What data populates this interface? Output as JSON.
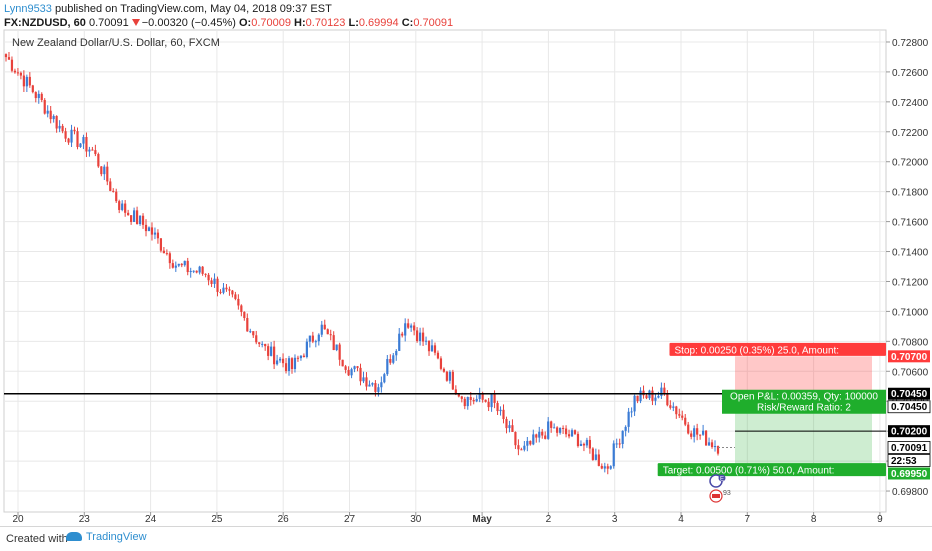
{
  "header": {
    "user": "Lynn9533",
    "published": " published on TradingView.com, May 04, 2018 09:37 EST",
    "symbol": "FX:NZDUSD, 60",
    "last": "0.70091",
    "change": "−0.00320 (−0.45%)",
    "o_label": "O:",
    "o": "0.70009",
    "h_label": "H:",
    "h": "0.70123",
    "l_label": "L:",
    "l": "0.69994",
    "c_label": "C:",
    "c": "0.70091"
  },
  "footer": {
    "created_with": "Created with",
    "brand": "TradingView"
  },
  "colors": {
    "up": "#3a7bd5",
    "down": "#e8413b",
    "stop": "#ff3b3b",
    "target": "#1fae2c",
    "grid": "#e8e8e8",
    "axis_text": "#333333"
  },
  "chart_data": {
    "type": "candlestick",
    "title": "New Zealand Dollar/U.S. Dollar, 60, FXCM",
    "ylim": [
      0.6966,
      0.7288
    ],
    "y_ticks": [
      "0.72800",
      "0.72600",
      "0.72400",
      "0.72200",
      "0.72000",
      "0.71800",
      "0.71600",
      "0.71400",
      "0.71200",
      "0.71000",
      "0.70800",
      "0.70600",
      "0.70400",
      "0.70200",
      "0.70000",
      "0.69800"
    ],
    "x_ticks": [
      "20",
      "23",
      "24",
      "25",
      "26",
      "27",
      "30",
      "May",
      "2",
      "3",
      "4",
      "7",
      "8",
      "9"
    ],
    "path": [
      [
        0.727,
        0.7246
      ],
      [
        0.7246,
        0.722
      ],
      [
        0.722,
        0.7208
      ],
      [
        0.7208,
        0.717
      ],
      [
        0.717,
        0.7155
      ],
      [
        0.7155,
        0.713
      ],
      [
        0.713,
        0.7125
      ],
      [
        0.7125,
        0.7105
      ],
      [
        0.7105,
        0.7075
      ],
      [
        0.7075,
        0.7062
      ],
      [
        0.7062,
        0.709
      ],
      [
        0.709,
        0.7062
      ],
      [
        0.7062,
        0.705
      ],
      [
        0.705,
        0.7095
      ],
      [
        0.7095,
        0.707
      ],
      [
        0.707,
        0.7042
      ],
      [
        0.7042,
        0.704
      ],
      [
        0.704,
        0.7005
      ],
      [
        0.7005,
        0.7022
      ],
      [
        0.7022,
        0.7015
      ],
      [
        0.7015,
        0.6995
      ],
      [
        0.6995,
        0.7042
      ],
      [
        0.7042,
        0.7045
      ],
      [
        0.7045,
        0.702
      ],
      [
        0.702,
        0.7009
      ]
    ],
    "hlines": [
      {
        "name": "resistance",
        "value": 0.7045,
        "color": "#000000"
      },
      {
        "name": "current",
        "value": 0.702,
        "color": "#000000"
      }
    ],
    "position": {
      "entry": 0.7045,
      "stop": 0.707,
      "target": 0.6995,
      "stop_label": "Stop: 0.00250 (0.35%) 25.0, Amount:",
      "pnl_label": "Open P&L: 0.00359, Qty: 100000",
      "rr_label": "Risk/Reward Ratio: 2",
      "target_label": "Target: 0.00500 (0.71%) 50.0, Amount:"
    },
    "price_tags": [
      {
        "value": 0.707,
        "label": "0.70700",
        "bg": "#ff3b3b",
        "fg": "#ffffff"
      },
      {
        "value": 0.7045,
        "label": "0.70450",
        "bg": "#000000",
        "fg": "#ffffff"
      },
      {
        "value": 0.7045,
        "label": "0.70450",
        "bg": "#ffffff",
        "fg": "#000000",
        "border": "#000000"
      },
      {
        "value": 0.702,
        "label": "0.70200",
        "bg": "#000000",
        "fg": "#ffffff"
      },
      {
        "value": 0.70091,
        "label": "0.70091",
        "bg": "#ffffff",
        "fg": "#000000",
        "border": "#000000"
      },
      {
        "value": 0.7005,
        "label": "22:53",
        "bg": "#ffffff",
        "fg": "#000000",
        "border": "#000000"
      },
      {
        "value": 0.6995,
        "label": "0.69950",
        "bg": "#1fae2c",
        "fg": "#ffffff"
      }
    ],
    "events": [
      {
        "label": "E"
      },
      {
        "label": "93"
      }
    ]
  }
}
